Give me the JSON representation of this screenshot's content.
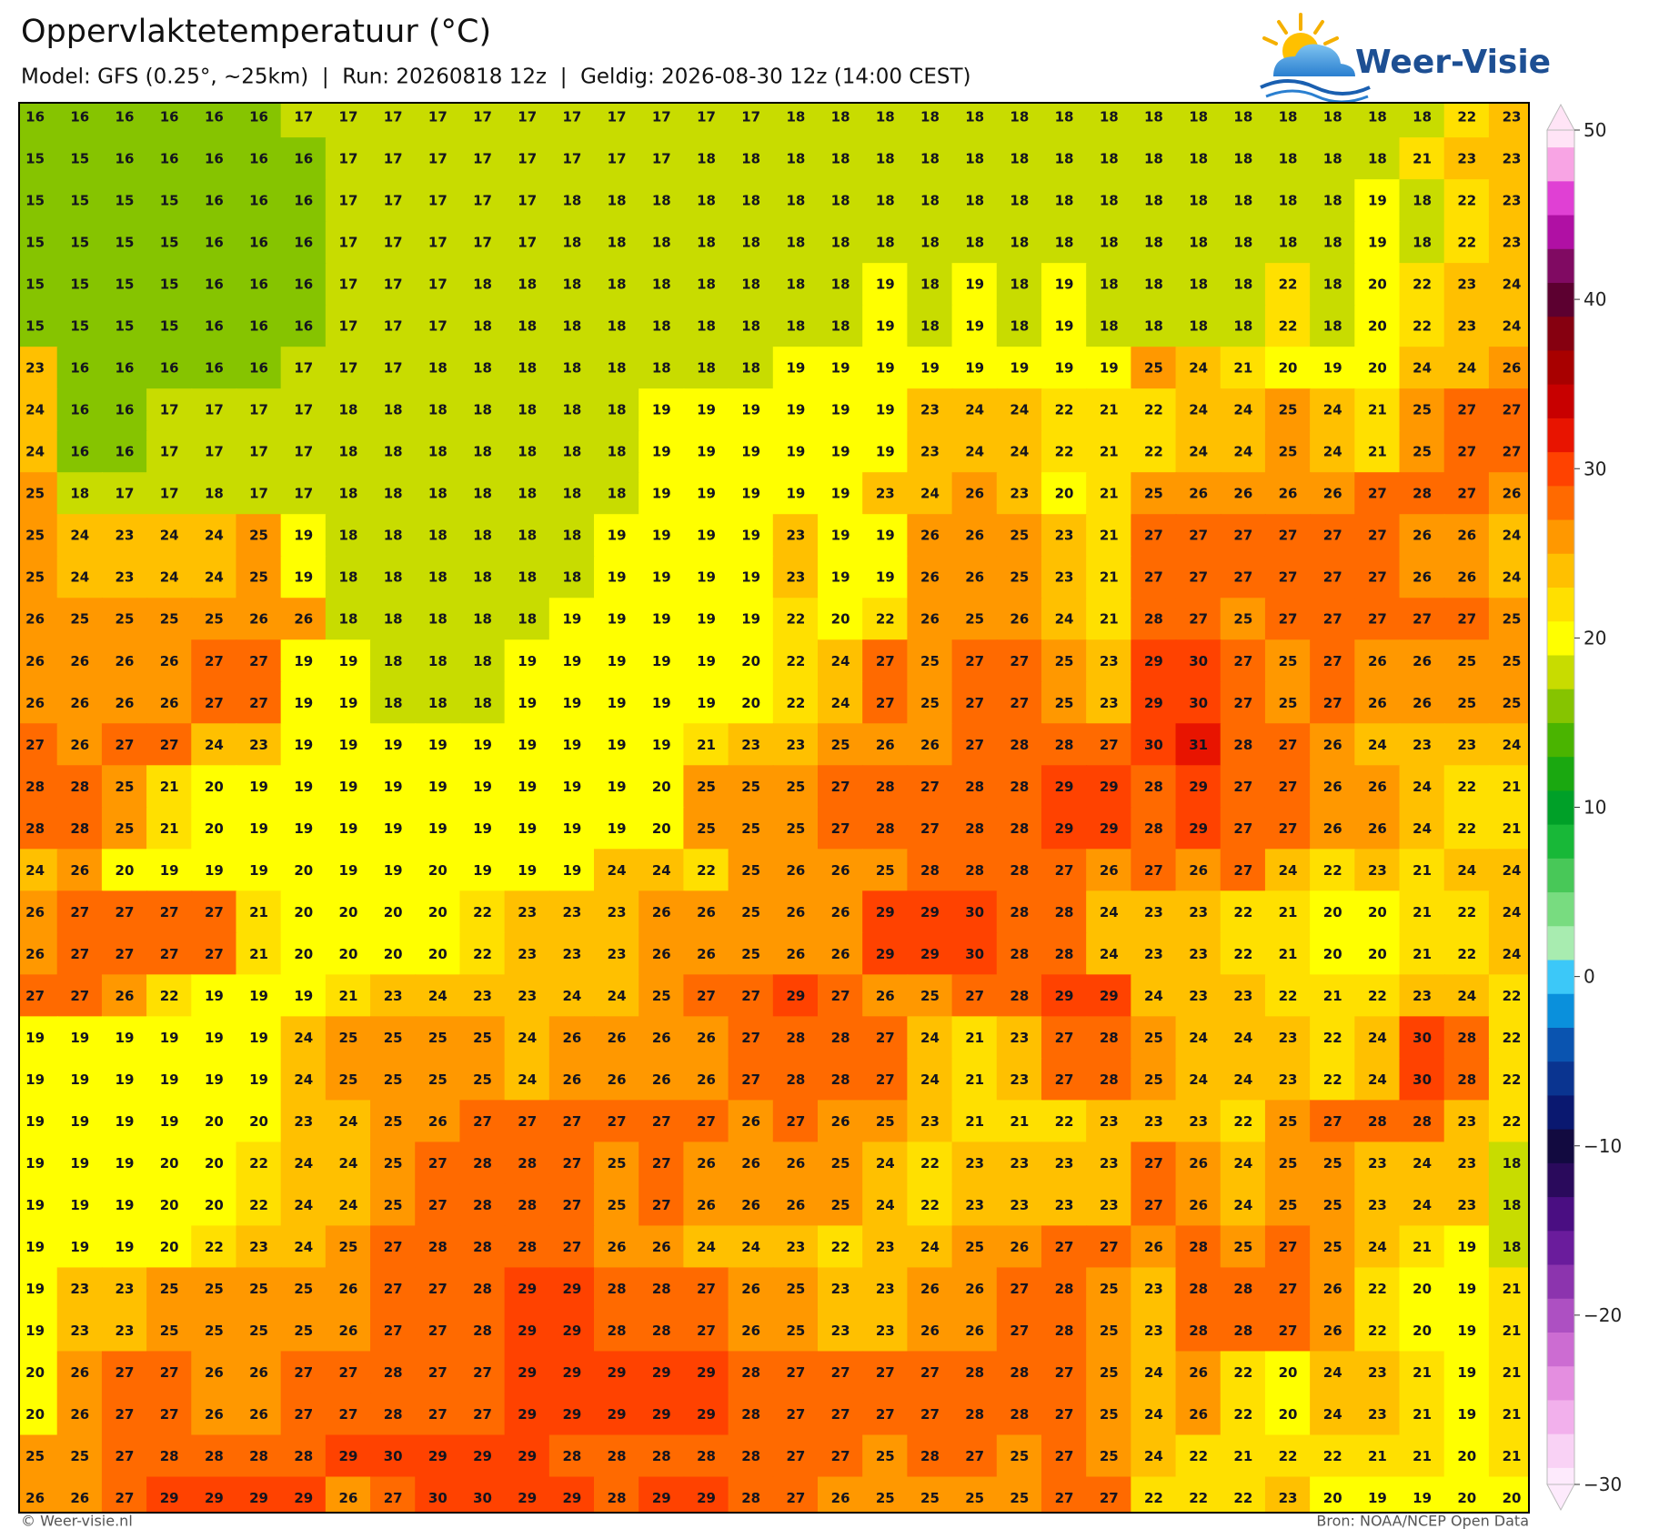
{
  "header": {
    "title": "Oppervlaktetemperatuur (°C)",
    "subtitle": "Model: GFS (0.25°, ~25km)  |  Run: 20260818 12z  |  Geldig: 2026-08-30 12z (14:00 CEST)"
  },
  "logo": "Weer-Visie",
  "map": {
    "values": [
      [
        16,
        16,
        16,
        16,
        16,
        16,
        17,
        17,
        17,
        17,
        17,
        17,
        17,
        17,
        17,
        17,
        17,
        18,
        18,
        18,
        18,
        18,
        18,
        18,
        18,
        18,
        18,
        18,
        18,
        18,
        18,
        18,
        22,
        23
      ],
      [
        15,
        15,
        16,
        16,
        16,
        16,
        16,
        17,
        17,
        17,
        17,
        17,
        17,
        17,
        17,
        18,
        18,
        18,
        18,
        18,
        18,
        18,
        18,
        18,
        18,
        18,
        18,
        18,
        18,
        18,
        18,
        21,
        23,
        23
      ],
      [
        15,
        15,
        15,
        15,
        16,
        16,
        16,
        17,
        17,
        17,
        17,
        17,
        18,
        18,
        18,
        18,
        18,
        18,
        18,
        18,
        18,
        18,
        18,
        18,
        18,
        18,
        18,
        18,
        18,
        18,
        19,
        18,
        22,
        23
      ],
      [
        15,
        15,
        15,
        15,
        16,
        16,
        16,
        17,
        17,
        17,
        17,
        17,
        18,
        18,
        18,
        18,
        18,
        18,
        18,
        18,
        18,
        18,
        18,
        18,
        18,
        18,
        18,
        18,
        18,
        18,
        19,
        18,
        22,
        23
      ],
      [
        15,
        15,
        15,
        15,
        16,
        16,
        16,
        17,
        17,
        17,
        18,
        18,
        18,
        18,
        18,
        18,
        18,
        18,
        18,
        19,
        18,
        19,
        18,
        19,
        18,
        18,
        18,
        18,
        22,
        18,
        20,
        22,
        23,
        24
      ],
      [
        15,
        15,
        15,
        15,
        16,
        16,
        16,
        17,
        17,
        17,
        18,
        18,
        18,
        18,
        18,
        18,
        18,
        18,
        18,
        19,
        18,
        19,
        18,
        19,
        18,
        18,
        18,
        18,
        22,
        18,
        20,
        22,
        23,
        24
      ],
      [
        23,
        16,
        16,
        16,
        16,
        16,
        17,
        17,
        17,
        18,
        18,
        18,
        18,
        18,
        18,
        18,
        18,
        19,
        19,
        19,
        19,
        19,
        19,
        19,
        19,
        25,
        24,
        21,
        20,
        19,
        20,
        24,
        24,
        26
      ],
      [
        24,
        16,
        16,
        17,
        17,
        17,
        17,
        18,
        18,
        18,
        18,
        18,
        18,
        18,
        19,
        19,
        19,
        19,
        19,
        19,
        23,
        24,
        24,
        22,
        21,
        22,
        24,
        24,
        25,
        24,
        21,
        25,
        27,
        27
      ],
      [
        24,
        16,
        16,
        17,
        17,
        17,
        17,
        18,
        18,
        18,
        18,
        18,
        18,
        18,
        19,
        19,
        19,
        19,
        19,
        19,
        23,
        24,
        24,
        22,
        21,
        22,
        24,
        24,
        25,
        24,
        21,
        25,
        27,
        27
      ],
      [
        25,
        18,
        17,
        17,
        18,
        17,
        17,
        18,
        18,
        18,
        18,
        18,
        18,
        18,
        19,
        19,
        19,
        19,
        19,
        23,
        24,
        26,
        23,
        20,
        21,
        25,
        26,
        26,
        26,
        26,
        27,
        28,
        27,
        26
      ],
      [
        25,
        24,
        23,
        24,
        24,
        25,
        19,
        18,
        18,
        18,
        18,
        18,
        18,
        19,
        19,
        19,
        19,
        23,
        19,
        19,
        26,
        26,
        25,
        23,
        21,
        27,
        27,
        27,
        27,
        27,
        27,
        26,
        26,
        24
      ],
      [
        25,
        24,
        23,
        24,
        24,
        25,
        19,
        18,
        18,
        18,
        18,
        18,
        18,
        19,
        19,
        19,
        19,
        23,
        19,
        19,
        26,
        26,
        25,
        23,
        21,
        27,
        27,
        27,
        27,
        27,
        27,
        26,
        26,
        24
      ],
      [
        26,
        25,
        25,
        25,
        25,
        26,
        26,
        18,
        18,
        18,
        18,
        18,
        19,
        19,
        19,
        19,
        19,
        22,
        20,
        22,
        26,
        25,
        26,
        24,
        21,
        28,
        27,
        25,
        27,
        27,
        27,
        27,
        27,
        25
      ],
      [
        26,
        26,
        26,
        26,
        27,
        27,
        19,
        19,
        18,
        18,
        18,
        19,
        19,
        19,
        19,
        19,
        20,
        22,
        24,
        27,
        25,
        27,
        27,
        25,
        23,
        29,
        30,
        27,
        25,
        27,
        26,
        26,
        25,
        25
      ],
      [
        26,
        26,
        26,
        26,
        27,
        27,
        19,
        19,
        18,
        18,
        18,
        19,
        19,
        19,
        19,
        19,
        20,
        22,
        24,
        27,
        25,
        27,
        27,
        25,
        23,
        29,
        30,
        27,
        25,
        27,
        26,
        26,
        25,
        25
      ],
      [
        27,
        26,
        27,
        27,
        24,
        23,
        19,
        19,
        19,
        19,
        19,
        19,
        19,
        19,
        19,
        21,
        23,
        23,
        25,
        26,
        26,
        27,
        28,
        28,
        27,
        30,
        31,
        28,
        27,
        26,
        24,
        23,
        23,
        24
      ],
      [
        28,
        28,
        25,
        21,
        20,
        19,
        19,
        19,
        19,
        19,
        19,
        19,
        19,
        19,
        20,
        25,
        25,
        25,
        27,
        28,
        27,
        28,
        28,
        29,
        29,
        28,
        29,
        27,
        27,
        26,
        26,
        24,
        22,
        21
      ],
      [
        28,
        28,
        25,
        21,
        20,
        19,
        19,
        19,
        19,
        19,
        19,
        19,
        19,
        19,
        20,
        25,
        25,
        25,
        27,
        28,
        27,
        28,
        28,
        29,
        29,
        28,
        29,
        27,
        27,
        26,
        26,
        24,
        22,
        21
      ],
      [
        24,
        26,
        20,
        19,
        19,
        19,
        20,
        19,
        19,
        20,
        19,
        19,
        19,
        24,
        24,
        22,
        25,
        26,
        26,
        25,
        28,
        28,
        28,
        27,
        26,
        27,
        26,
        27,
        24,
        22,
        23,
        21,
        24,
        24
      ],
      [
        26,
        27,
        27,
        27,
        27,
        21,
        20,
        20,
        20,
        20,
        22,
        23,
        23,
        23,
        26,
        26,
        25,
        26,
        26,
        29,
        29,
        30,
        28,
        28,
        24,
        23,
        23,
        22,
        21,
        20,
        20,
        21,
        22,
        24
      ],
      [
        26,
        27,
        27,
        27,
        27,
        21,
        20,
        20,
        20,
        20,
        22,
        23,
        23,
        23,
        26,
        26,
        25,
        26,
        26,
        29,
        29,
        30,
        28,
        28,
        24,
        23,
        23,
        22,
        21,
        20,
        20,
        21,
        22,
        24
      ],
      [
        27,
        27,
        26,
        22,
        19,
        19,
        19,
        21,
        23,
        24,
        23,
        23,
        24,
        24,
        25,
        27,
        27,
        29,
        27,
        26,
        25,
        27,
        28,
        29,
        29,
        24,
        23,
        23,
        22,
        21,
        22,
        23,
        24,
        22
      ],
      [
        19,
        19,
        19,
        19,
        19,
        19,
        24,
        25,
        25,
        25,
        25,
        24,
        26,
        26,
        26,
        26,
        27,
        28,
        28,
        27,
        24,
        21,
        23,
        27,
        28,
        25,
        24,
        24,
        23,
        22,
        24,
        30,
        28,
        22
      ],
      [
        19,
        19,
        19,
        19,
        19,
        19,
        24,
        25,
        25,
        25,
        25,
        24,
        26,
        26,
        26,
        26,
        27,
        28,
        28,
        27,
        24,
        21,
        23,
        27,
        28,
        25,
        24,
        24,
        23,
        22,
        24,
        30,
        28,
        22
      ],
      [
        19,
        19,
        19,
        19,
        20,
        20,
        23,
        24,
        25,
        26,
        27,
        27,
        27,
        27,
        27,
        27,
        26,
        27,
        26,
        25,
        23,
        21,
        21,
        22,
        23,
        23,
        23,
        22,
        25,
        27,
        28,
        28,
        23,
        22
      ],
      [
        19,
        19,
        19,
        20,
        20,
        22,
        24,
        24,
        25,
        27,
        28,
        28,
        27,
        25,
        27,
        26,
        26,
        26,
        25,
        24,
        22,
        23,
        23,
        23,
        23,
        27,
        26,
        24,
        25,
        25,
        23,
        24,
        23,
        18
      ],
      [
        19,
        19,
        19,
        20,
        20,
        22,
        24,
        24,
        25,
        27,
        28,
        28,
        27,
        25,
        27,
        26,
        26,
        26,
        25,
        24,
        22,
        23,
        23,
        23,
        23,
        27,
        26,
        24,
        25,
        25,
        23,
        24,
        23,
        18
      ],
      [
        19,
        19,
        19,
        20,
        22,
        23,
        24,
        25,
        27,
        28,
        28,
        28,
        27,
        26,
        26,
        24,
        24,
        23,
        22,
        23,
        24,
        25,
        26,
        27,
        27,
        26,
        28,
        25,
        27,
        25,
        24,
        21,
        19,
        18
      ],
      [
        19,
        23,
        23,
        25,
        25,
        25,
        25,
        26,
        27,
        27,
        28,
        29,
        29,
        28,
        28,
        27,
        26,
        25,
        23,
        23,
        26,
        26,
        27,
        28,
        25,
        23,
        28,
        28,
        27,
        26,
        22,
        20,
        19,
        21
      ],
      [
        19,
        23,
        23,
        25,
        25,
        25,
        25,
        26,
        27,
        27,
        28,
        29,
        29,
        28,
        28,
        27,
        26,
        25,
        23,
        23,
        26,
        26,
        27,
        28,
        25,
        23,
        28,
        28,
        27,
        26,
        22,
        20,
        19,
        21
      ],
      [
        20,
        26,
        27,
        27,
        26,
        26,
        27,
        27,
        28,
        27,
        27,
        29,
        29,
        29,
        29,
        29,
        28,
        27,
        27,
        27,
        27,
        28,
        28,
        27,
        25,
        24,
        26,
        22,
        20,
        24,
        23,
        21,
        19,
        21
      ],
      [
        20,
        26,
        27,
        27,
        26,
        26,
        27,
        27,
        28,
        27,
        27,
        29,
        29,
        29,
        29,
        29,
        28,
        27,
        27,
        27,
        27,
        28,
        28,
        27,
        25,
        24,
        26,
        22,
        20,
        24,
        23,
        21,
        19,
        21
      ],
      [
        25,
        25,
        27,
        28,
        28,
        28,
        28,
        29,
        30,
        29,
        29,
        29,
        28,
        28,
        28,
        28,
        28,
        27,
        27,
        25,
        28,
        27,
        25,
        27,
        25,
        24,
        22,
        21,
        22,
        22,
        21,
        21,
        20,
        21
      ],
      [
        26,
        26,
        27,
        29,
        29,
        29,
        29,
        26,
        27,
        30,
        30,
        29,
        29,
        28,
        29,
        29,
        28,
        27,
        26,
        25,
        25,
        25,
        25,
        27,
        27,
        22,
        22,
        22,
        23,
        20,
        19,
        19,
        20,
        20
      ]
    ]
  },
  "colorbar": {
    "lim": [
      -30,
      50
    ],
    "ticks": [
      {
        "value": -30,
        "label": "−30"
      },
      {
        "value": -20,
        "label": "−20"
      },
      {
        "value": -10,
        "label": "−10"
      },
      0,
      10,
      20,
      30,
      40,
      50
    ],
    "colors": [
      "#fdeafc",
      "#f9d2f5",
      "#f2b0ec",
      "#e48ee0",
      "#cc6cd2",
      "#ad50c2",
      "#8c34ae",
      "#6a1c9c",
      "#4a0e82",
      "#2a0a5c",
      "#120a40",
      "#0a1870",
      "#0a3490",
      "#0a54b0",
      "#0a90dc",
      "#3cc8f8",
      "#a8ecb0",
      "#78dc80",
      "#48c858",
      "#18b838",
      "#00a028",
      "#1aa810",
      "#4ab400",
      "#86c400",
      "#c8dc00",
      "#ffff00",
      "#ffe000",
      "#ffc000",
      "#ff9800",
      "#ff6a00",
      "#ff4200",
      "#e81400",
      "#c80000",
      "#a80000",
      "#860010",
      "#5c0030",
      "#800a62",
      "#b010a4",
      "#e040d4",
      "#f8a4e4",
      "#ffe4f6"
    ]
  },
  "footer": {
    "left": "© Weer-visie.nl",
    "right": "Bron: NOAA/NCEP Open Data"
  }
}
